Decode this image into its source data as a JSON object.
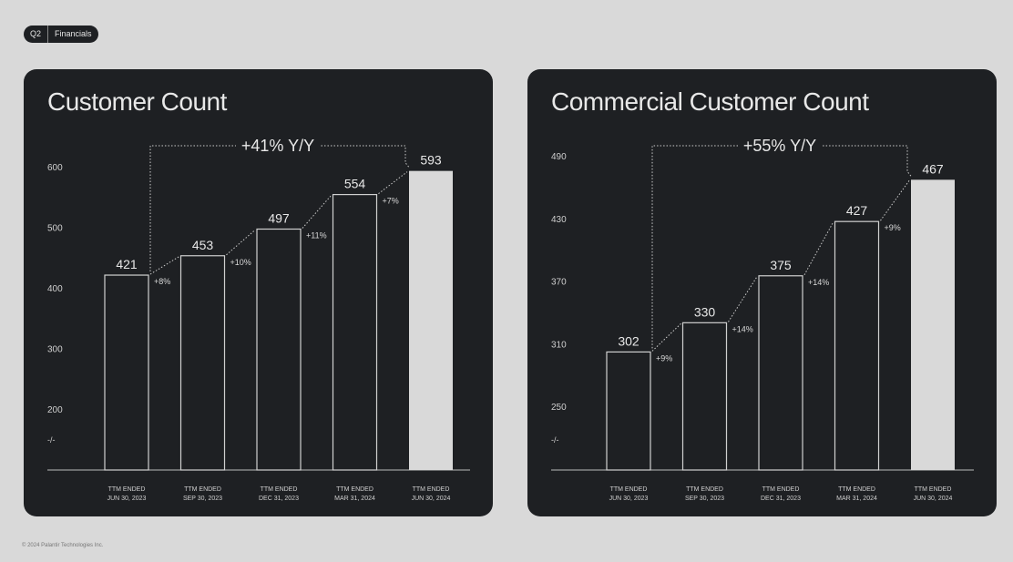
{
  "badge": {
    "section": "Q2",
    "label": "Financials"
  },
  "footer": "© 2024 Palantir Technologies Inc.",
  "colors": {
    "background": "#d9d9d9",
    "card": "#1e2023",
    "text": "#e8e8e8",
    "highlight_bar": "#d9d9d9"
  },
  "chart_data": [
    {
      "type": "bar",
      "title": "Customer Count",
      "categories": [
        "TTM ENDED|JUN 30, 2023",
        "TTM ENDED|SEP 30, 2023",
        "TTM ENDED|DEC 31, 2023",
        "TTM ENDED|MAR 31, 2024",
        "TTM ENDED|JUN 30, 2024"
      ],
      "values": [
        421,
        453,
        497,
        554,
        593
      ],
      "growth": [
        "+8%",
        "+10%",
        "+11%",
        "+7%"
      ],
      "yoy": "+41% Y/Y",
      "yticks": [
        600,
        500,
        400,
        300,
        200
      ],
      "axis_break": "-/-",
      "ylim": [
        99,
        600
      ]
    },
    {
      "type": "bar",
      "title": "Commercial Customer Count",
      "categories": [
        "TTM ENDED|JUN 30, 2023",
        "TTM ENDED|SEP 30, 2023",
        "TTM ENDED|DEC 31, 2023",
        "TTM ENDED|MAR 31, 2024",
        "TTM ENDED|JUN 30, 2024"
      ],
      "values": [
        302,
        330,
        375,
        427,
        467
      ],
      "growth": [
        "+9%",
        "+14%",
        "+14%",
        "+9%"
      ],
      "yoy": "+55% Y/Y",
      "yticks": [
        490,
        430,
        370,
        310,
        250
      ],
      "axis_break": "-/-",
      "ylim": [
        192,
        490
      ]
    }
  ]
}
